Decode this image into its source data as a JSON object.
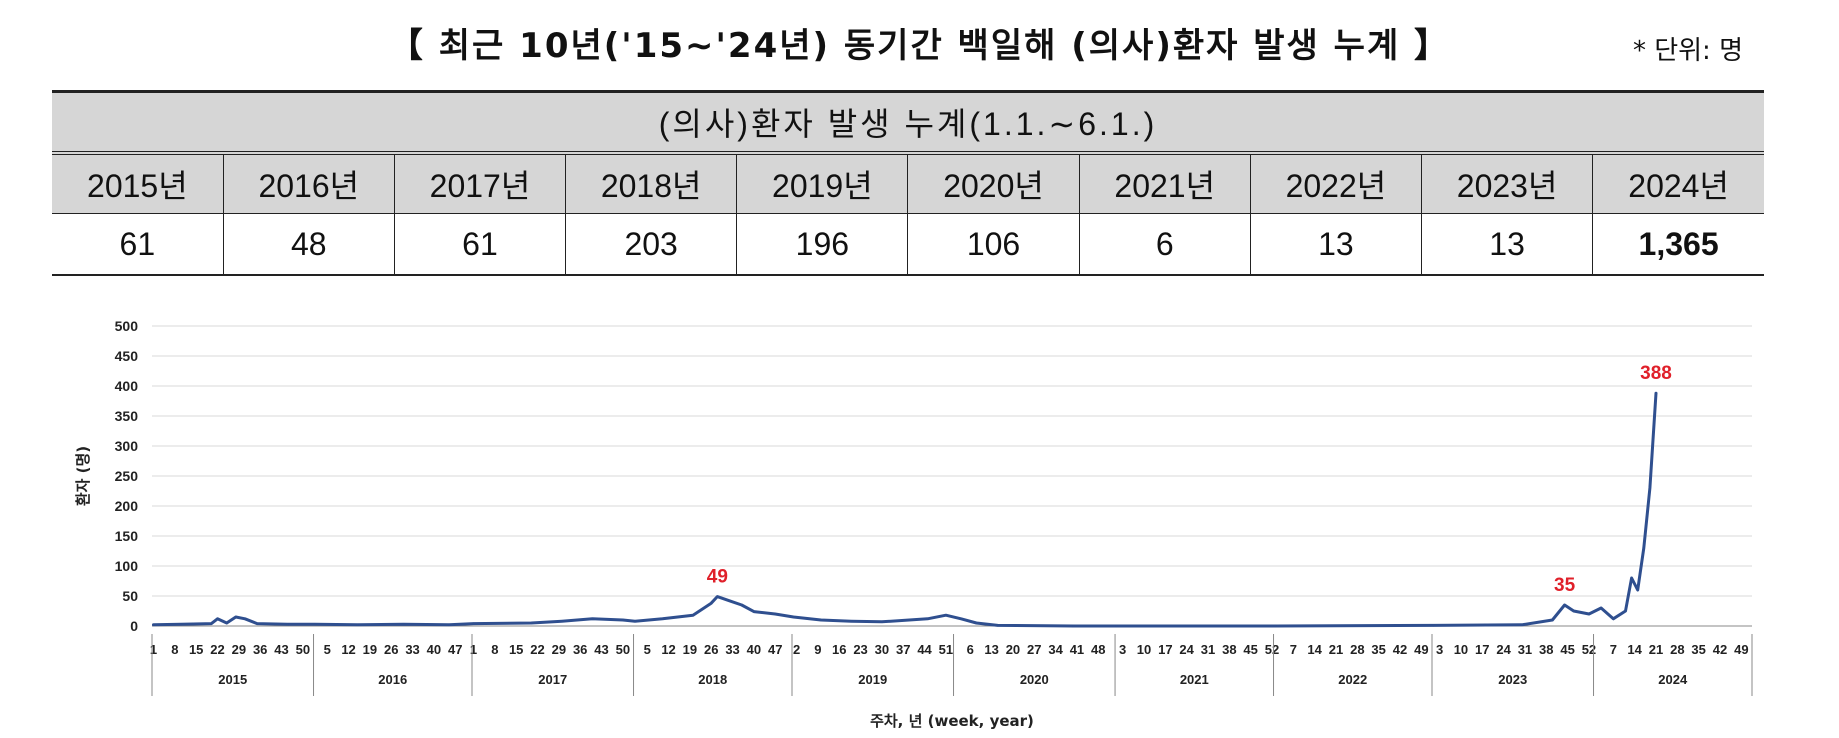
{
  "header": {
    "title": "【 최근 10년('15∼'24년) 동기간 백일해 (의사)환자 발생 누계 】",
    "unit": "* 단위: 명"
  },
  "table": {
    "subtitle": "(의사)환자 발생 누계(1.1.∼6.1.)",
    "years": [
      "2015년",
      "2016년",
      "2017년",
      "2018년",
      "2019년",
      "2020년",
      "2021년",
      "2022년",
      "2023년",
      "2024년"
    ],
    "values": [
      "61",
      "48",
      "61",
      "203",
      "196",
      "106",
      "6",
      "13",
      "13",
      "1,365"
    ]
  },
  "chart_data": {
    "type": "line",
    "ylabel": "환자 (명)",
    "xlabel": "주차, 년 (week, year)",
    "ylim": [
      0,
      500
    ],
    "yticks": [
      0,
      50,
      100,
      150,
      200,
      250,
      300,
      350,
      400,
      450,
      500
    ],
    "grid": true,
    "series_color": "#2f4f8f",
    "annotation_color": "#e0202a",
    "years": [
      {
        "year": "2015",
        "weeks": 53,
        "ticks": [
          "1",
          "8",
          "15",
          "22",
          "29",
          "36",
          "43",
          "50"
        ]
      },
      {
        "year": "2016",
        "weeks": 52,
        "ticks": [
          "5",
          "12",
          "19",
          "26",
          "33",
          "40",
          "47"
        ]
      },
      {
        "year": "2017",
        "weeks": 53,
        "ticks": [
          "1",
          "8",
          "15",
          "22",
          "29",
          "36",
          "43",
          "50"
        ]
      },
      {
        "year": "2018",
        "weeks": 52,
        "ticks": [
          "5",
          "12",
          "19",
          "26",
          "33",
          "40",
          "47"
        ]
      },
      {
        "year": "2019",
        "weeks": 53,
        "ticks": [
          "2",
          "9",
          "16",
          "23",
          "30",
          "37",
          "44",
          "51"
        ]
      },
      {
        "year": "2020",
        "weeks": 53,
        "ticks": [
          "6",
          "13",
          "20",
          "27",
          "34",
          "41",
          "48"
        ]
      },
      {
        "year": "2021",
        "weeks": 52,
        "ticks": [
          "3",
          "10",
          "17",
          "24",
          "31",
          "38",
          "45",
          "52"
        ]
      },
      {
        "year": "2022",
        "weeks": 52,
        "ticks": [
          "7",
          "14",
          "21",
          "28",
          "35",
          "42",
          "49"
        ]
      },
      {
        "year": "2023",
        "weeks": 53,
        "ticks": [
          "3",
          "10",
          "17",
          "24",
          "31",
          "38",
          "45",
          "52"
        ]
      },
      {
        "year": "2024",
        "weeks": 52,
        "ticks": [
          "7",
          "14",
          "21",
          "28",
          "35",
          "42",
          "49"
        ]
      }
    ],
    "series": [
      {
        "points": [
          {
            "year": "2015",
            "week": 1,
            "value": 2
          },
          {
            "year": "2015",
            "week": 10,
            "value": 3
          },
          {
            "year": "2015",
            "week": 20,
            "value": 4
          },
          {
            "year": "2015",
            "week": 22,
            "value": 12
          },
          {
            "year": "2015",
            "week": 25,
            "value": 5
          },
          {
            "year": "2015",
            "week": 28,
            "value": 15
          },
          {
            "year": "2015",
            "week": 31,
            "value": 12
          },
          {
            "year": "2015",
            "week": 35,
            "value": 4
          },
          {
            "year": "2015",
            "week": 45,
            "value": 3
          },
          {
            "year": "2016",
            "week": 1,
            "value": 3
          },
          {
            "year": "2016",
            "week": 15,
            "value": 2
          },
          {
            "year": "2016",
            "week": 30,
            "value": 3
          },
          {
            "year": "2016",
            "week": 45,
            "value": 2
          },
          {
            "year": "2017",
            "week": 1,
            "value": 4
          },
          {
            "year": "2017",
            "week": 20,
            "value": 5
          },
          {
            "year": "2017",
            "week": 30,
            "value": 8
          },
          {
            "year": "2017",
            "week": 40,
            "value": 12
          },
          {
            "year": "2017",
            "week": 50,
            "value": 10
          },
          {
            "year": "2018",
            "week": 1,
            "value": 8
          },
          {
            "year": "2018",
            "week": 10,
            "value": 12
          },
          {
            "year": "2018",
            "week": 20,
            "value": 18
          },
          {
            "year": "2018",
            "week": 26,
            "value": 38
          },
          {
            "year": "2018",
            "week": 28,
            "value": 49
          },
          {
            "year": "2018",
            "week": 32,
            "value": 42
          },
          {
            "year": "2018",
            "week": 36,
            "value": 35
          },
          {
            "year": "2018",
            "week": 40,
            "value": 24
          },
          {
            "year": "2018",
            "week": 47,
            "value": 20
          },
          {
            "year": "2019",
            "week": 1,
            "value": 15
          },
          {
            "year": "2019",
            "week": 10,
            "value": 10
          },
          {
            "year": "2019",
            "week": 20,
            "value": 8
          },
          {
            "year": "2019",
            "week": 30,
            "value": 7
          },
          {
            "year": "2019",
            "week": 45,
            "value": 12
          },
          {
            "year": "2019",
            "week": 51,
            "value": 18
          },
          {
            "year": "2020",
            "week": 3,
            "value": 12
          },
          {
            "year": "2020",
            "week": 8,
            "value": 5
          },
          {
            "year": "2020",
            "week": 15,
            "value": 1
          },
          {
            "year": "2020",
            "week": 40,
            "value": 0
          },
          {
            "year": "2021",
            "week": 1,
            "value": 0
          },
          {
            "year": "2021",
            "week": 52,
            "value": 0
          },
          {
            "year": "2022",
            "week": 1,
            "value": 0
          },
          {
            "year": "2022",
            "week": 52,
            "value": 1
          },
          {
            "year": "2023",
            "week": 1,
            "value": 1
          },
          {
            "year": "2023",
            "week": 30,
            "value": 2
          },
          {
            "year": "2023",
            "week": 40,
            "value": 10
          },
          {
            "year": "2023",
            "week": 44,
            "value": 35
          },
          {
            "year": "2023",
            "week": 47,
            "value": 25
          },
          {
            "year": "2023",
            "week": 52,
            "value": 20
          },
          {
            "year": "2024",
            "week": 3,
            "value": 30
          },
          {
            "year": "2024",
            "week": 7,
            "value": 12
          },
          {
            "year": "2024",
            "week": 11,
            "value": 25
          },
          {
            "year": "2024",
            "week": 13,
            "value": 80
          },
          {
            "year": "2024",
            "week": 15,
            "value": 60
          },
          {
            "year": "2024",
            "week": 17,
            "value": 130
          },
          {
            "year": "2024",
            "week": 19,
            "value": 230
          },
          {
            "year": "2024",
            "week": 21,
            "value": 388
          }
        ]
      }
    ],
    "annotations": [
      {
        "text": "49",
        "year": "2018",
        "week": 28,
        "value": 49
      },
      {
        "text": "35",
        "year": "2023",
        "week": 44,
        "value": 35
      },
      {
        "text": "388",
        "year": "2024",
        "week": 21,
        "value": 388
      }
    ]
  }
}
